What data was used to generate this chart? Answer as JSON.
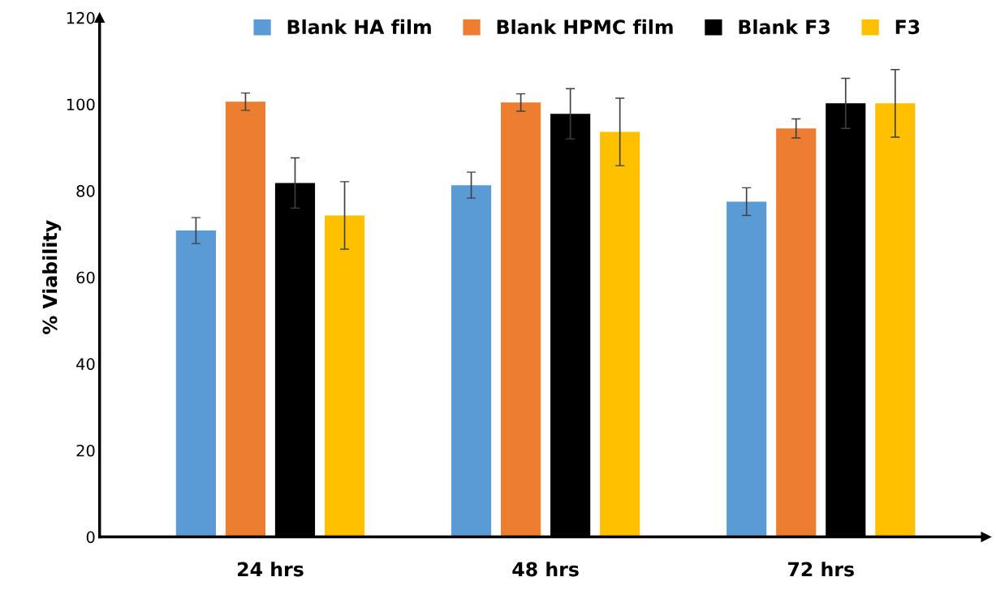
{
  "chart_data": {
    "type": "bar",
    "ylabel": "% Viability",
    "categories": [
      "24 hrs",
      "48 hrs",
      "72 hrs"
    ],
    "series": [
      {
        "name": "Blank HA film",
        "color": "#5b9bd5",
        "values": [
          70.8,
          81.3,
          77.5
        ],
        "errors": [
          3,
          3,
          3.2
        ]
      },
      {
        "name": "Blank HPMC film",
        "color": "#ed7d31",
        "values": [
          100.6,
          100.4,
          94.4
        ],
        "errors": [
          2,
          2,
          2.2
        ]
      },
      {
        "name": "Blank F3",
        "color": "#000000",
        "values": [
          81.8,
          97.8,
          100.2
        ],
        "errors": [
          5.8,
          5.8,
          5.8
        ]
      },
      {
        "name": "F3",
        "color": "#ffc000",
        "values": [
          74.3,
          93.6,
          100.2
        ],
        "errors": [
          7.8,
          7.8,
          7.8
        ]
      }
    ],
    "ylim": [
      0,
      120
    ],
    "yticks": [
      0,
      20,
      40,
      60,
      80,
      100,
      120
    ],
    "grid": false,
    "legend": "top"
  }
}
